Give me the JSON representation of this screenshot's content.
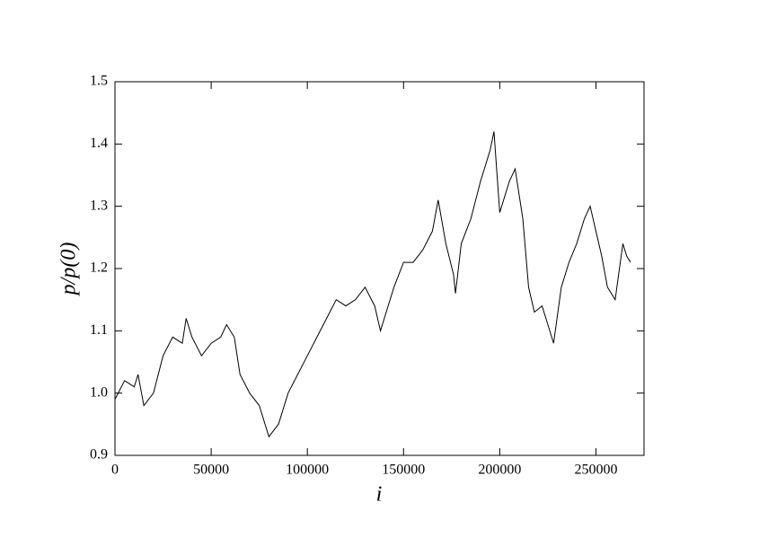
{
  "chart_data": {
    "type": "line",
    "x_label": "i",
    "y_label": "p/p(0)",
    "x": [
      0,
      5000,
      10000,
      12000,
      15000,
      20000,
      25000,
      30000,
      35000,
      37000,
      40000,
      45000,
      50000,
      55000,
      58000,
      62000,
      65000,
      70000,
      75000,
      80000,
      85000,
      90000,
      95000,
      100000,
      105000,
      110000,
      115000,
      120000,
      125000,
      130000,
      135000,
      138000,
      142000,
      145000,
      150000,
      155000,
      160000,
      165000,
      168000,
      172000,
      176000,
      177000,
      180000,
      185000,
      190000,
      195000,
      197000,
      200000,
      205000,
      208000,
      212000,
      215000,
      218000,
      222000,
      225000,
      228000,
      232000,
      236000,
      240000,
      244000,
      247000,
      250000,
      253000,
      256000,
      260000,
      264000,
      266000,
      268000
    ],
    "series": [
      {
        "color": "#000000",
        "values": [
          0.99,
          1.02,
          1.01,
          1.03,
          0.98,
          1.0,
          1.06,
          1.09,
          1.08,
          1.12,
          1.09,
          1.06,
          1.08,
          1.09,
          1.11,
          1.09,
          1.03,
          1.0,
          0.98,
          0.93,
          0.95,
          1.0,
          1.03,
          1.06,
          1.09,
          1.12,
          1.15,
          1.14,
          1.15,
          1.17,
          1.14,
          1.1,
          1.14,
          1.17,
          1.21,
          1.21,
          1.23,
          1.26,
          1.31,
          1.24,
          1.19,
          1.16,
          1.24,
          1.28,
          1.34,
          1.39,
          1.42,
          1.29,
          1.34,
          1.36,
          1.28,
          1.17,
          1.13,
          1.14,
          1.11,
          1.08,
          1.17,
          1.21,
          1.24,
          1.28,
          1.3,
          1.26,
          1.22,
          1.17,
          1.15,
          1.24,
          1.22,
          1.21
        ]
      }
    ],
    "xlim": [
      0,
      275000
    ],
    "xticks": [
      0,
      50000,
      100000,
      150000,
      200000,
      250000
    ],
    "ylim": [
      0.9,
      1.5
    ],
    "yticks": [
      0.9,
      {
        "value": 1,
        "label": "1.0"
      },
      1.1,
      1.2,
      1.3,
      1.4,
      1.5
    ]
  }
}
